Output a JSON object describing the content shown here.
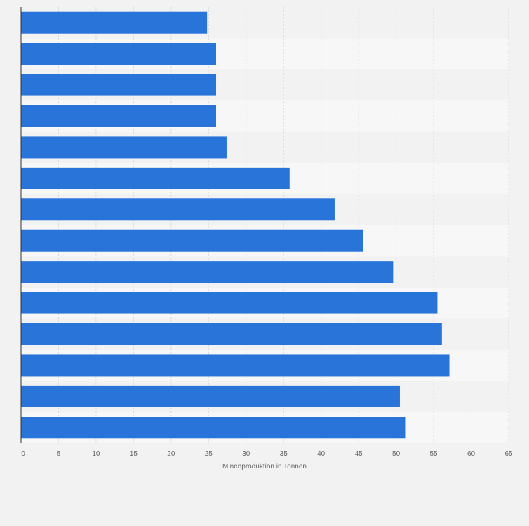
{
  "chart_data": {
    "type": "bar",
    "orientation": "horizontal",
    "title": "",
    "xlabel": "Minenproduktion in Tonnen",
    "ylabel": "",
    "xlim": [
      0,
      65
    ],
    "xticks": [
      0,
      5,
      10,
      15,
      20,
      25,
      30,
      35,
      40,
      45,
      50,
      55,
      60,
      65
    ],
    "categories": [
      "",
      "",
      "",
      "",
      "",
      "",
      "",
      "",
      "",
      "",
      "",
      "",
      "",
      ""
    ],
    "values": [
      24.8,
      26.0,
      26.0,
      26.0,
      27.4,
      35.8,
      41.8,
      45.6,
      49.6,
      55.5,
      56.1,
      57.1,
      50.5,
      51.2
    ],
    "grid": true,
    "legend": "none",
    "colors": {
      "bar": "#2874d9",
      "background": "#f2f2f2",
      "band_light": "#f7f7f7",
      "band_dark": "#f2f2f2",
      "gridline": "#d8d8d8",
      "axis": "#333333",
      "text": "#666666"
    }
  }
}
